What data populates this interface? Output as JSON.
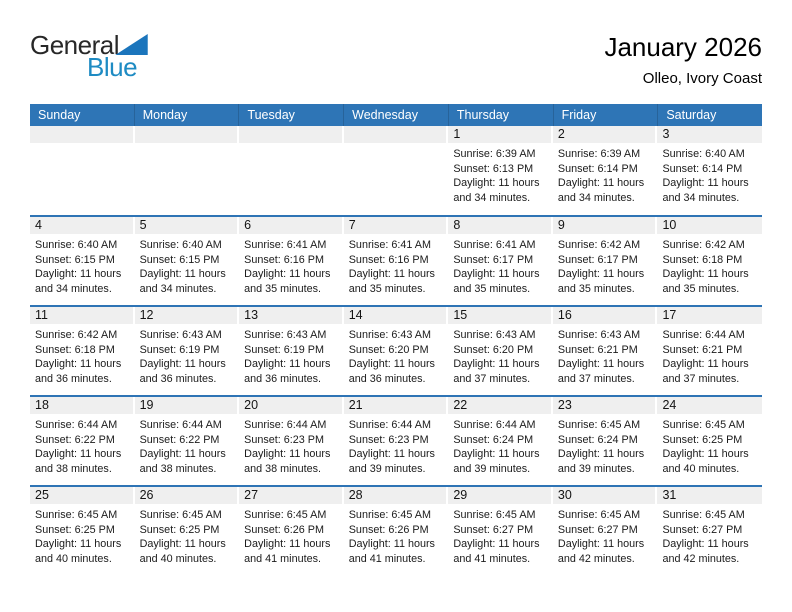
{
  "logo": {
    "text_general": "General",
    "text_blue": "Blue"
  },
  "title": "January 2026",
  "subtitle": "Olleo, Ivory Coast",
  "colors": {
    "header_bg": "#2E75B6",
    "week_divider": "#2E74B5",
    "day_band_bg": "#EFEFEF",
    "header_text": "#FFFFFF",
    "logo_blue": "#1E8BC3",
    "logo_triangle": "#1B75BC"
  },
  "weekday_headers": [
    "Sunday",
    "Monday",
    "Tuesday",
    "Wednesday",
    "Thursday",
    "Friday",
    "Saturday"
  ],
  "weeks": [
    [
      {
        "day": "",
        "lines": []
      },
      {
        "day": "",
        "lines": []
      },
      {
        "day": "",
        "lines": []
      },
      {
        "day": "",
        "lines": []
      },
      {
        "day": "1",
        "lines": [
          "Sunrise: 6:39 AM",
          "Sunset: 6:13 PM",
          "Daylight: 11 hours",
          "and 34 minutes."
        ]
      },
      {
        "day": "2",
        "lines": [
          "Sunrise: 6:39 AM",
          "Sunset: 6:14 PM",
          "Daylight: 11 hours",
          "and 34 minutes."
        ]
      },
      {
        "day": "3",
        "lines": [
          "Sunrise: 6:40 AM",
          "Sunset: 6:14 PM",
          "Daylight: 11 hours",
          "and 34 minutes."
        ]
      }
    ],
    [
      {
        "day": "4",
        "lines": [
          "Sunrise: 6:40 AM",
          "Sunset: 6:15 PM",
          "Daylight: 11 hours",
          "and 34 minutes."
        ]
      },
      {
        "day": "5",
        "lines": [
          "Sunrise: 6:40 AM",
          "Sunset: 6:15 PM",
          "Daylight: 11 hours",
          "and 34 minutes."
        ]
      },
      {
        "day": "6",
        "lines": [
          "Sunrise: 6:41 AM",
          "Sunset: 6:16 PM",
          "Daylight: 11 hours",
          "and 35 minutes."
        ]
      },
      {
        "day": "7",
        "lines": [
          "Sunrise: 6:41 AM",
          "Sunset: 6:16 PM",
          "Daylight: 11 hours",
          "and 35 minutes."
        ]
      },
      {
        "day": "8",
        "lines": [
          "Sunrise: 6:41 AM",
          "Sunset: 6:17 PM",
          "Daylight: 11 hours",
          "and 35 minutes."
        ]
      },
      {
        "day": "9",
        "lines": [
          "Sunrise: 6:42 AM",
          "Sunset: 6:17 PM",
          "Daylight: 11 hours",
          "and 35 minutes."
        ]
      },
      {
        "day": "10",
        "lines": [
          "Sunrise: 6:42 AM",
          "Sunset: 6:18 PM",
          "Daylight: 11 hours",
          "and 35 minutes."
        ]
      }
    ],
    [
      {
        "day": "11",
        "lines": [
          "Sunrise: 6:42 AM",
          "Sunset: 6:18 PM",
          "Daylight: 11 hours",
          "and 36 minutes."
        ]
      },
      {
        "day": "12",
        "lines": [
          "Sunrise: 6:43 AM",
          "Sunset: 6:19 PM",
          "Daylight: 11 hours",
          "and 36 minutes."
        ]
      },
      {
        "day": "13",
        "lines": [
          "Sunrise: 6:43 AM",
          "Sunset: 6:19 PM",
          "Daylight: 11 hours",
          "and 36 minutes."
        ]
      },
      {
        "day": "14",
        "lines": [
          "Sunrise: 6:43 AM",
          "Sunset: 6:20 PM",
          "Daylight: 11 hours",
          "and 36 minutes."
        ]
      },
      {
        "day": "15",
        "lines": [
          "Sunrise: 6:43 AM",
          "Sunset: 6:20 PM",
          "Daylight: 11 hours",
          "and 37 minutes."
        ]
      },
      {
        "day": "16",
        "lines": [
          "Sunrise: 6:43 AM",
          "Sunset: 6:21 PM",
          "Daylight: 11 hours",
          "and 37 minutes."
        ]
      },
      {
        "day": "17",
        "lines": [
          "Sunrise: 6:44 AM",
          "Sunset: 6:21 PM",
          "Daylight: 11 hours",
          "and 37 minutes."
        ]
      }
    ],
    [
      {
        "day": "18",
        "lines": [
          "Sunrise: 6:44 AM",
          "Sunset: 6:22 PM",
          "Daylight: 11 hours",
          "and 38 minutes."
        ]
      },
      {
        "day": "19",
        "lines": [
          "Sunrise: 6:44 AM",
          "Sunset: 6:22 PM",
          "Daylight: 11 hours",
          "and 38 minutes."
        ]
      },
      {
        "day": "20",
        "lines": [
          "Sunrise: 6:44 AM",
          "Sunset: 6:23 PM",
          "Daylight: 11 hours",
          "and 38 minutes."
        ]
      },
      {
        "day": "21",
        "lines": [
          "Sunrise: 6:44 AM",
          "Sunset: 6:23 PM",
          "Daylight: 11 hours",
          "and 39 minutes."
        ]
      },
      {
        "day": "22",
        "lines": [
          "Sunrise: 6:44 AM",
          "Sunset: 6:24 PM",
          "Daylight: 11 hours",
          "and 39 minutes."
        ]
      },
      {
        "day": "23",
        "lines": [
          "Sunrise: 6:45 AM",
          "Sunset: 6:24 PM",
          "Daylight: 11 hours",
          "and 39 minutes."
        ]
      },
      {
        "day": "24",
        "lines": [
          "Sunrise: 6:45 AM",
          "Sunset: 6:25 PM",
          "Daylight: 11 hours",
          "and 40 minutes."
        ]
      }
    ],
    [
      {
        "day": "25",
        "lines": [
          "Sunrise: 6:45 AM",
          "Sunset: 6:25 PM",
          "Daylight: 11 hours",
          "and 40 minutes."
        ]
      },
      {
        "day": "26",
        "lines": [
          "Sunrise: 6:45 AM",
          "Sunset: 6:25 PM",
          "Daylight: 11 hours",
          "and 40 minutes."
        ]
      },
      {
        "day": "27",
        "lines": [
          "Sunrise: 6:45 AM",
          "Sunset: 6:26 PM",
          "Daylight: 11 hours",
          "and 41 minutes."
        ]
      },
      {
        "day": "28",
        "lines": [
          "Sunrise: 6:45 AM",
          "Sunset: 6:26 PM",
          "Daylight: 11 hours",
          "and 41 minutes."
        ]
      },
      {
        "day": "29",
        "lines": [
          "Sunrise: 6:45 AM",
          "Sunset: 6:27 PM",
          "Daylight: 11 hours",
          "and 41 minutes."
        ]
      },
      {
        "day": "30",
        "lines": [
          "Sunrise: 6:45 AM",
          "Sunset: 6:27 PM",
          "Daylight: 11 hours",
          "and 42 minutes."
        ]
      },
      {
        "day": "31",
        "lines": [
          "Sunrise: 6:45 AM",
          "Sunset: 6:27 PM",
          "Daylight: 11 hours",
          "and 42 minutes."
        ]
      }
    ]
  ]
}
